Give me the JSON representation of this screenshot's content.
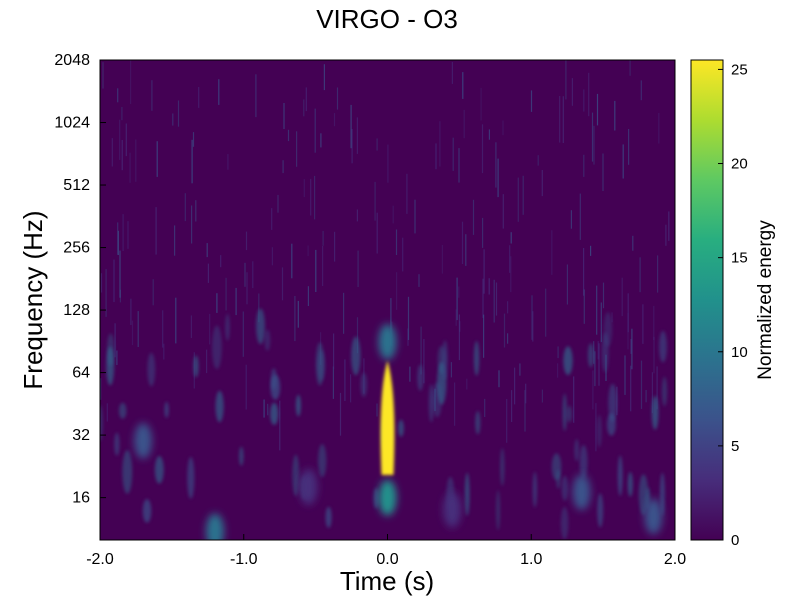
{
  "chart_data": {
    "type": "heatmap",
    "title": "VIRGO - O3",
    "xlabel": "Time (s)",
    "ylabel": "Frequency (Hz)",
    "xlim": [
      -2.0,
      2.0
    ],
    "ylim": [
      10,
      2048
    ],
    "y_scale": "log2",
    "x_ticks": [
      -2.0,
      -1.0,
      0.0,
      1.0,
      2.0
    ],
    "x_tick_labels": [
      "-2.0",
      "-1.0",
      "0.0",
      "1.0",
      "2.0"
    ],
    "y_ticks": [
      16,
      32,
      64,
      128,
      256,
      512,
      1024,
      2048
    ],
    "y_tick_labels": [
      "16",
      "32",
      "64",
      "128",
      "256",
      "512",
      "1024",
      "2048"
    ],
    "colormap": "viridis",
    "colorbar": {
      "label": "Normalized energy",
      "range": [
        0,
        25.5
      ],
      "ticks": [
        0,
        5,
        10,
        15,
        20,
        25
      ],
      "tick_labels": [
        "0",
        "5",
        "10",
        "15",
        "20",
        "25"
      ]
    },
    "features": [
      {
        "time_s": 0.0,
        "freq_hz": 16,
        "energy": 12
      },
      {
        "time_s": 0.0,
        "freq_hz": 24,
        "energy": 25.5
      },
      {
        "time_s": 0.0,
        "freq_hz": 32,
        "energy": 25.5
      },
      {
        "time_s": 0.0,
        "freq_hz": 45,
        "energy": 25
      },
      {
        "time_s": 0.0,
        "freq_hz": 64,
        "energy": 22
      },
      {
        "time_s": 0.0,
        "freq_hz": 90,
        "energy": 8
      },
      {
        "time_s": -1.2,
        "freq_hz": 11,
        "energy": 9
      },
      {
        "time_s": -1.7,
        "freq_hz": 30,
        "energy": 6
      },
      {
        "time_s": 1.35,
        "freq_hz": 17,
        "energy": 6
      },
      {
        "time_s": 1.85,
        "freq_hz": 13,
        "energy": 5
      },
      {
        "time_s": 0.45,
        "freq_hz": 14,
        "energy": 4
      },
      {
        "time_s": -0.55,
        "freq_hz": 18,
        "energy": 4
      }
    ],
    "background_energy": [
      0,
      3
    ],
    "grid": false
  }
}
